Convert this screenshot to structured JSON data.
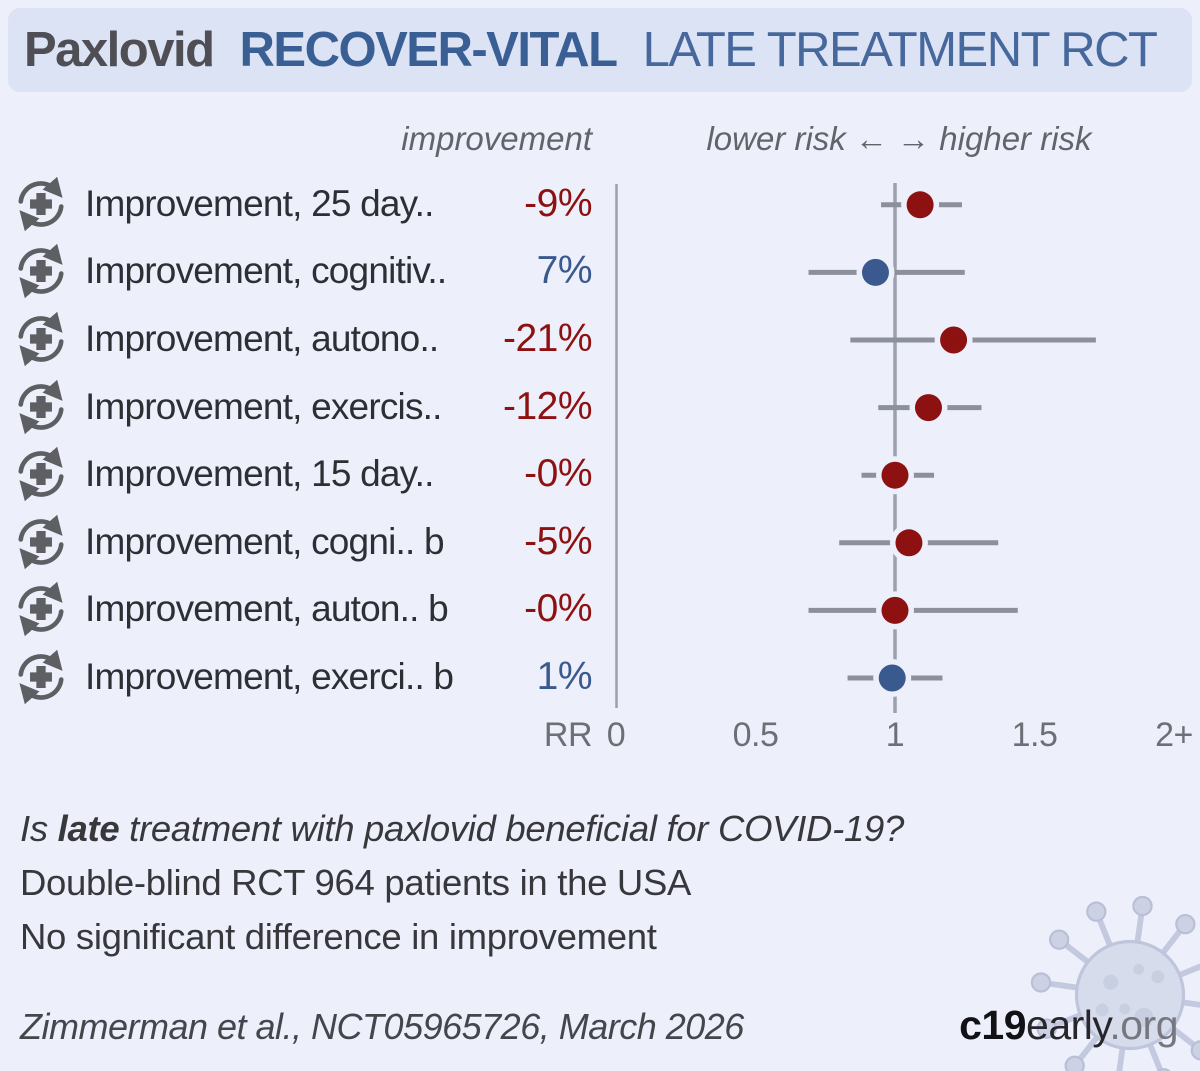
{
  "title": {
    "drug": "Paxlovid",
    "study": "RECOVER-VITAL",
    "type": "LATE TREATMENT RCT"
  },
  "column_headers": {
    "improvement": "improvement",
    "risk": "lower risk ←  → higher risk"
  },
  "axis": {
    "label": "RR",
    "ticks": [
      "0",
      "0.5",
      "1",
      "1.5",
      "2+"
    ]
  },
  "chart_data": {
    "type": "forest",
    "xlabel": "RR",
    "x_ticks": [
      "0",
      "0.5",
      "1",
      "1.5",
      "2+"
    ],
    "x_range": [
      0,
      2
    ],
    "reference_rr": 1,
    "legend": "red dot = worse outcome (negative improvement), blue dot = better outcome",
    "outcomes": [
      {
        "label": "Improvement, 25 day..",
        "improvement": "-9%",
        "rr": 1.09,
        "ci": [
          0.95,
          1.24
        ],
        "color": "negative"
      },
      {
        "label": "Improvement, cognitiv..",
        "improvement": "7%",
        "rr": 0.93,
        "ci": [
          0.69,
          1.25
        ],
        "color": "positive"
      },
      {
        "label": "Improvement, autono..",
        "improvement": "-21%",
        "rr": 1.21,
        "ci": [
          0.84,
          1.72
        ],
        "color": "negative"
      },
      {
        "label": "Improvement, exercis..",
        "improvement": "-12%",
        "rr": 1.12,
        "ci": [
          0.94,
          1.31
        ],
        "color": "negative"
      },
      {
        "label": "Improvement, 15 day..",
        "improvement": "-0%",
        "rr": 1.0,
        "ci": [
          0.88,
          1.14
        ],
        "color": "negative"
      },
      {
        "label": "Improvement, cogni.. b",
        "improvement": "-5%",
        "rr": 1.05,
        "ci": [
          0.8,
          1.37
        ],
        "color": "negative"
      },
      {
        "label": "Improvement, auton.. b",
        "improvement": "-0%",
        "rr": 1.0,
        "ci": [
          0.69,
          1.44
        ],
        "color": "negative"
      },
      {
        "label": "Improvement, exerci.. b",
        "improvement": "1%",
        "rr": 0.99,
        "ci": [
          0.83,
          1.17
        ],
        "color": "positive"
      }
    ]
  },
  "summary": {
    "question_prefix": "Is ",
    "question_bold": "late",
    "question_rest": " treatment with paxlovid beneficial for COVID-19?",
    "line2": "Double-blind RCT 964 patients in the USA",
    "line3": "No significant difference in improvement"
  },
  "footer": {
    "citation": "Zimmerman et al., NCT05965726, March 2026",
    "brand_bold": "c19",
    "brand_mid": "early",
    "brand_suffix": ".org"
  },
  "colors": {
    "negative": "#8e1112",
    "positive": "#3a598f",
    "ci_line": "#8b909c",
    "reference_line": "#9aa0ad",
    "header_band": "#dce3f5",
    "background": "#edf0fb"
  }
}
